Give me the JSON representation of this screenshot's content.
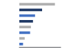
{
  "chart_data": {
    "type": "bar",
    "orientation": "horizontal",
    "categories": [
      null,
      null,
      null,
      null,
      null,
      null,
      null,
      null
    ],
    "values": [
      86,
      55,
      38,
      33,
      28,
      26,
      13,
      9
    ],
    "colors": [
      "#b0b0b0",
      "#1f3864",
      "#4472c4",
      "#1f3864",
      "#b0b0b0",
      "#4472c4",
      "#b0b0b0",
      "#4472c4"
    ],
    "xlim": [
      0,
      100
    ],
    "grid": false,
    "tick_labels": false
  }
}
